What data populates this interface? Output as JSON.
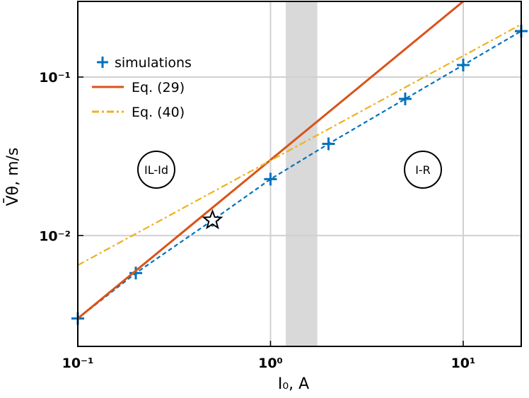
{
  "chart_data": {
    "type": "line",
    "x_label": "I₀, A",
    "y_label": "V̄θ, m/s",
    "log_x": true,
    "log_y": true,
    "grid": true,
    "xlim": [
      0.1,
      20
    ],
    "ylim": [
      0.002,
      0.3
    ],
    "xticks": [
      {
        "value": 0.1,
        "label": "10⁻¹"
      },
      {
        "value": 1,
        "label": "10⁰"
      },
      {
        "value": 10,
        "label": "10¹"
      }
    ],
    "yticks": [
      {
        "value": 0.01,
        "label": "10⁻²"
      },
      {
        "value": 0.1,
        "label": "10⁻¹"
      }
    ],
    "legend": "upper left",
    "shaded_region": {
      "x": [
        1.2,
        1.75
      ],
      "color": "#d9d9d9"
    },
    "annotations": [
      "IL-Id",
      "I-R"
    ],
    "series": [
      {
        "name": "simulations",
        "color": "#0072bd",
        "style": "dashed",
        "marker": "+",
        "x": [
          0.1,
          0.2,
          0.5,
          1,
          2,
          5,
          10,
          20
        ],
        "values": [
          0.003,
          0.0058,
          0.0125,
          0.0227,
          0.0379,
          0.0728,
          0.119,
          0.195
        ]
      },
      {
        "name": "Eq. (29)",
        "color": "#d95319",
        "style": "solid",
        "x": [
          0.1,
          10
        ],
        "values": [
          0.003,
          0.3
        ]
      },
      {
        "name": "Eq. (40)",
        "color": "#edb120",
        "style": "dashdot",
        "x": [
          0.1,
          20
        ],
        "values": [
          0.0065,
          0.215
        ]
      }
    ]
  }
}
